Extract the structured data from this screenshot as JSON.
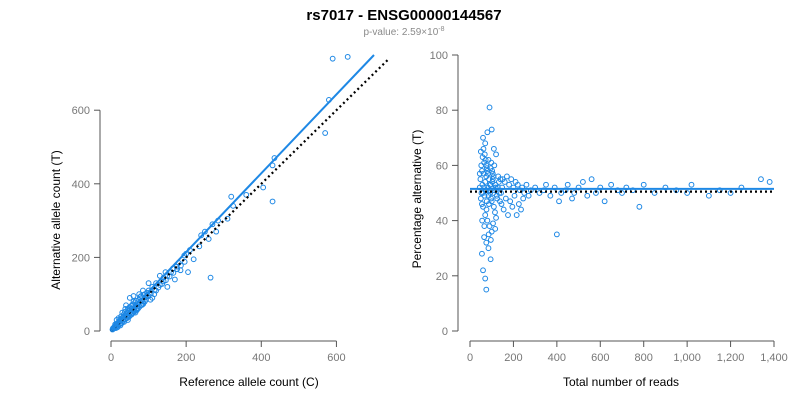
{
  "title": "rs7017 - ENSG00000144567",
  "subtitle_prefix": "p-value: 2.59×10",
  "subtitle_exp": "-8",
  "colors": {
    "points": "#1e88e5",
    "fit_line": "#1e88e5",
    "reference_line": "#000000",
    "axis": "#555555",
    "tick_text": "#777777"
  },
  "chart_data": [
    {
      "type": "scatter",
      "xlabel": "Reference allele count (C)",
      "ylabel": "Alternative allele count (T)",
      "xlim": [
        0,
        700
      ],
      "ylim": [
        0,
        750
      ],
      "xticks": [
        0,
        200,
        400,
        600
      ],
      "yticks": [
        0,
        200,
        400,
        600
      ],
      "xtick_labels": [
        "0",
        "200",
        "400",
        "600"
      ],
      "ytick_labels": [
        "0",
        "200",
        "400",
        "600"
      ],
      "fit_line": [
        [
          0,
          0
        ],
        [
          700,
          750
        ]
      ],
      "reference_line": [
        [
          0,
          0
        ],
        [
          740,
          740
        ]
      ],
      "points": [
        [
          590,
          740
        ],
        [
          630,
          745
        ],
        [
          570,
          538
        ],
        [
          580,
          628
        ],
        [
          435,
          470
        ],
        [
          430,
          450
        ],
        [
          430,
          352
        ],
        [
          405,
          390
        ],
        [
          360,
          370
        ],
        [
          320,
          365
        ],
        [
          325,
          340
        ],
        [
          310,
          305
        ],
        [
          285,
          300
        ],
        [
          270,
          290
        ],
        [
          265,
          145
        ],
        [
          280,
          270
        ],
        [
          250,
          270
        ],
        [
          240,
          260
        ],
        [
          235,
          230
        ],
        [
          260,
          250
        ],
        [
          210,
          220
        ],
        [
          200,
          210
        ],
        [
          195,
          205
        ],
        [
          205,
          160
        ],
        [
          220,
          195
        ],
        [
          180,
          185
        ],
        [
          175,
          175
        ],
        [
          185,
          165
        ],
        [
          165,
          170
        ],
        [
          160,
          160
        ],
        [
          150,
          150
        ],
        [
          145,
          160
        ],
        [
          130,
          150
        ],
        [
          170,
          140
        ],
        [
          150,
          120
        ],
        [
          140,
          135
        ],
        [
          120,
          130
        ],
        [
          110,
          120
        ],
        [
          115,
          100
        ],
        [
          100,
          110
        ],
        [
          95,
          95
        ],
        [
          90,
          100
        ],
        [
          105,
          85
        ],
        [
          85,
          80
        ],
        [
          80,
          95
        ],
        [
          75,
          85
        ],
        [
          70,
          75
        ],
        [
          65,
          70
        ],
        [
          60,
          80
        ],
        [
          55,
          60
        ],
        [
          50,
          65
        ],
        [
          48,
          55
        ],
        [
          45,
          50
        ],
        [
          40,
          45
        ],
        [
          38,
          60
        ],
        [
          35,
          40
        ],
        [
          32,
          38
        ],
        [
          30,
          35
        ],
        [
          28,
          30
        ],
        [
          25,
          28
        ],
        [
          22,
          26
        ],
        [
          20,
          24
        ],
        [
          18,
          22
        ],
        [
          16,
          18
        ],
        [
          15,
          20
        ],
        [
          14,
          12
        ],
        [
          12,
          15
        ],
        [
          10,
          12
        ],
        [
          9,
          10
        ],
        [
          8,
          8
        ],
        [
          7,
          9
        ],
        [
          6,
          6
        ],
        [
          5,
          7
        ],
        [
          4,
          4
        ],
        [
          30,
          50
        ],
        [
          40,
          70
        ],
        [
          50,
          90
        ],
        [
          60,
          55
        ],
        [
          70,
          60
        ],
        [
          80,
          70
        ],
        [
          90,
          80
        ],
        [
          100,
          95
        ],
        [
          60,
          95
        ],
        [
          45,
          30
        ],
        [
          35,
          25
        ],
        [
          25,
          15
        ],
        [
          20,
          35
        ],
        [
          15,
          30
        ],
        [
          55,
          45
        ],
        [
          65,
          50
        ],
        [
          75,
          100
        ],
        [
          85,
          110
        ],
        [
          120,
          110
        ],
        [
          130,
          125
        ],
        [
          140,
          145
        ],
        [
          110,
          90
        ],
        [
          100,
          130
        ],
        [
          42,
          42
        ],
        [
          52,
          52
        ],
        [
          62,
          62
        ],
        [
          72,
          72
        ],
        [
          82,
          82
        ],
        [
          92,
          92
        ],
        [
          33,
          28
        ],
        [
          27,
          40
        ],
        [
          23,
          18
        ],
        [
          19,
          14
        ],
        [
          13,
          8
        ],
        [
          11,
          18
        ],
        [
          17,
          10
        ],
        [
          26,
          20
        ],
        [
          36,
          32
        ],
        [
          46,
          38
        ],
        [
          56,
          48
        ],
        [
          66,
          58
        ],
        [
          76,
          66
        ],
        [
          86,
          74
        ],
        [
          96,
          104
        ],
        [
          106,
          102
        ],
        [
          116,
          112
        ],
        [
          126,
          118
        ],
        [
          136,
          128
        ],
        [
          146,
          138
        ],
        [
          156,
          148
        ],
        [
          166,
          158
        ],
        [
          176,
          168
        ],
        [
          186,
          178
        ],
        [
          196,
          188
        ],
        [
          37,
          52
        ],
        [
          47,
          62
        ],
        [
          57,
          72
        ],
        [
          67,
          82
        ],
        [
          77,
          92
        ],
        [
          87,
          98
        ],
        [
          43,
          35
        ],
        [
          53,
          44
        ],
        [
          63,
          53
        ],
        [
          73,
          62
        ],
        [
          83,
          71
        ],
        [
          93,
          85
        ],
        [
          24,
          32
        ],
        [
          29,
          22
        ],
        [
          34,
          45
        ],
        [
          39,
          33
        ],
        [
          44,
          58
        ],
        [
          49,
          40
        ],
        [
          54,
          68
        ],
        [
          59,
          50
        ],
        [
          64,
          78
        ],
        [
          69,
          57
        ]
      ]
    },
    {
      "type": "scatter",
      "xlabel": "Total number of reads",
      "ylabel": "Percentage alternative (T)",
      "xlim": [
        0,
        1400
      ],
      "ylim": [
        0,
        100
      ],
      "xticks": [
        0,
        200,
        400,
        600,
        800,
        1000,
        1200,
        1400
      ],
      "yticks": [
        0,
        20,
        40,
        60,
        80,
        100
      ],
      "xtick_labels": [
        "0",
        "200",
        "400",
        "600",
        "800",
        "1,000",
        "1,200",
        "1,400"
      ],
      "ytick_labels": [
        "0",
        "20",
        "40",
        "60",
        "80",
        "100"
      ],
      "fit_line": [
        [
          0,
          51.5
        ],
        [
          1400,
          51.5
        ]
      ],
      "reference_line": [
        [
          0,
          50.5
        ],
        [
          1400,
          50.5
        ]
      ],
      "points": [
        [
          90,
          81
        ],
        [
          80,
          72
        ],
        [
          100,
          73
        ],
        [
          60,
          70
        ],
        [
          70,
          68
        ],
        [
          110,
          66
        ],
        [
          50,
          65
        ],
        [
          120,
          64
        ],
        [
          85,
          62
        ],
        [
          65,
          61
        ],
        [
          75,
          60
        ],
        [
          95,
          59
        ],
        [
          55,
          58
        ],
        [
          105,
          57
        ],
        [
          45,
          57
        ],
        [
          130,
          56
        ],
        [
          140,
          55
        ],
        [
          150,
          55
        ],
        [
          160,
          54
        ],
        [
          170,
          56
        ],
        [
          180,
          53
        ],
        [
          190,
          55
        ],
        [
          200,
          52
        ],
        [
          210,
          54
        ],
        [
          220,
          53
        ],
        [
          230,
          51
        ],
        [
          240,
          52
        ],
        [
          250,
          50
        ],
        [
          260,
          53
        ],
        [
          270,
          49
        ],
        [
          280,
          51
        ],
        [
          300,
          52
        ],
        [
          320,
          50
        ],
        [
          340,
          51
        ],
        [
          350,
          53
        ],
        [
          370,
          49
        ],
        [
          390,
          52
        ],
        [
          400,
          35
        ],
        [
          410,
          47
        ],
        [
          420,
          50
        ],
        [
          440,
          51
        ],
        [
          450,
          53
        ],
        [
          470,
          48
        ],
        [
          480,
          50
        ],
        [
          500,
          52
        ],
        [
          520,
          54
        ],
        [
          540,
          49
        ],
        [
          560,
          55
        ],
        [
          580,
          50
        ],
        [
          600,
          52
        ],
        [
          620,
          47
        ],
        [
          650,
          53
        ],
        [
          680,
          51
        ],
        [
          700,
          50
        ],
        [
          720,
          52
        ],
        [
          750,
          51
        ],
        [
          780,
          45
        ],
        [
          800,
          53
        ],
        [
          850,
          50
        ],
        [
          900,
          52
        ],
        [
          950,
          51
        ],
        [
          1000,
          50
        ],
        [
          1100,
          49
        ],
        [
          1150,
          51
        ],
        [
          1200,
          50
        ],
        [
          1250,
          52
        ],
        [
          1340,
          55
        ],
        [
          1380,
          54
        ],
        [
          1020,
          53
        ],
        [
          60,
          45
        ],
        [
          70,
          42
        ],
        [
          80,
          40
        ],
        [
          90,
          38
        ],
        [
          100,
          36
        ],
        [
          65,
          34
        ],
        [
          75,
          32
        ],
        [
          85,
          30
        ],
        [
          55,
          28
        ],
        [
          95,
          26
        ],
        [
          60,
          22
        ],
        [
          70,
          19
        ],
        [
          75,
          15
        ],
        [
          50,
          48
        ],
        [
          55,
          46
        ],
        [
          60,
          50
        ],
        [
          65,
          52
        ],
        [
          70,
          54
        ],
        [
          75,
          56
        ],
        [
          80,
          58
        ],
        [
          85,
          49
        ],
        [
          90,
          51
        ],
        [
          95,
          53
        ],
        [
          100,
          47
        ],
        [
          105,
          55
        ],
        [
          110,
          45
        ],
        [
          115,
          43
        ],
        [
          120,
          41
        ],
        [
          125,
          48
        ],
        [
          135,
          50
        ],
        [
          145,
          46
        ],
        [
          155,
          44
        ],
        [
          165,
          48
        ],
        [
          175,
          42
        ],
        [
          185,
          47
        ],
        [
          195,
          45
        ],
        [
          205,
          49
        ],
        [
          215,
          42
        ],
        [
          225,
          46
        ],
        [
          235,
          44
        ],
        [
          245,
          48
        ],
        [
          52,
          60
        ],
        [
          58,
          63
        ],
        [
          62,
          66
        ],
        [
          68,
          64
        ],
        [
          72,
          62
        ],
        [
          78,
          59
        ],
        [
          82,
          57
        ],
        [
          88,
          55
        ],
        [
          92,
          53
        ],
        [
          98,
          61
        ],
        [
          102,
          58
        ],
        [
          108,
          56
        ],
        [
          112,
          60
        ],
        [
          118,
          52
        ],
        [
          56,
          40
        ],
        [
          66,
          38
        ],
        [
          76,
          44
        ],
        [
          86,
          35
        ],
        [
          96,
          33
        ],
        [
          106,
          39
        ],
        [
          116,
          37
        ],
        [
          45,
          52
        ],
        [
          48,
          55
        ],
        [
          53,
          50
        ],
        [
          57,
          53
        ],
        [
          63,
          57
        ],
        [
          67,
          49
        ],
        [
          73,
          51
        ],
        [
          77,
          47
        ],
        [
          83,
          52
        ],
        [
          87,
          46
        ],
        [
          93,
          50
        ],
        [
          97,
          48
        ],
        [
          103,
          54
        ],
        [
          107,
          50
        ],
        [
          113,
          51
        ],
        [
          117,
          53
        ],
        [
          123,
          49
        ],
        [
          128,
          52
        ],
        [
          133,
          54
        ],
        [
          138,
          47
        ],
        [
          143,
          50
        ],
        [
          148,
          52
        ]
      ]
    }
  ]
}
